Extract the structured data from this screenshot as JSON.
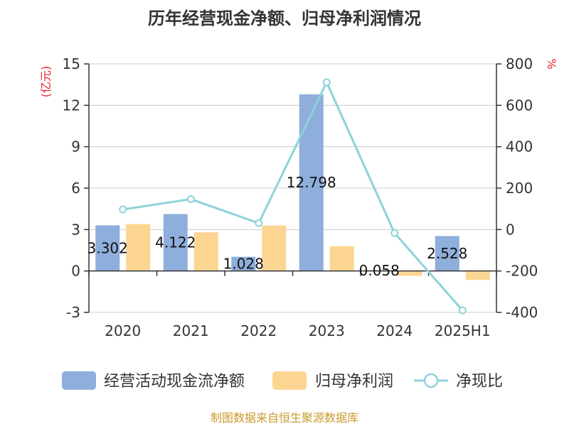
{
  "title": "历年经营现金净额、归母净利润情况",
  "source": "制图数据来自恒生聚源数据库",
  "colors": {
    "cash_flow": "#8eaedb",
    "net_profit": "#fdd592",
    "ratio": "#8dd3d8",
    "axis": "#333333",
    "grid": "#cccccc",
    "unit": "#e8202a"
  },
  "chart_data": {
    "type": "bar",
    "categories": [
      "2020",
      "2021",
      "2022",
      "2023",
      "2024",
      "2025H1"
    ],
    "series": [
      {
        "name": "经营活动现金流净额",
        "kind": "bar",
        "axis": "left",
        "values": [
          3.302,
          4.122,
          1.028,
          12.798,
          0.058,
          2.528
        ],
        "data_labels": [
          "3.302",
          "4.122",
          "1.028",
          "12.798",
          "0.058",
          "2.528"
        ]
      },
      {
        "name": "归母净利润",
        "kind": "bar",
        "axis": "left",
        "values": [
          3.4,
          2.8,
          3.3,
          1.8,
          -0.35,
          -0.65
        ]
      },
      {
        "name": "净现比",
        "kind": "line",
        "axis": "right",
        "values": [
          97,
          147,
          31,
          711,
          -17,
          -390
        ]
      }
    ],
    "y_left": {
      "label": "(亿元)",
      "min": -3,
      "max": 15,
      "ticks": [
        -3,
        0,
        3,
        6,
        9,
        12,
        15
      ]
    },
    "y_right": {
      "label": "%",
      "min": -400,
      "max": 800,
      "ticks": [
        -400,
        -200,
        0,
        200,
        400,
        600,
        800
      ]
    },
    "grid": true,
    "legend_position": "bottom"
  }
}
